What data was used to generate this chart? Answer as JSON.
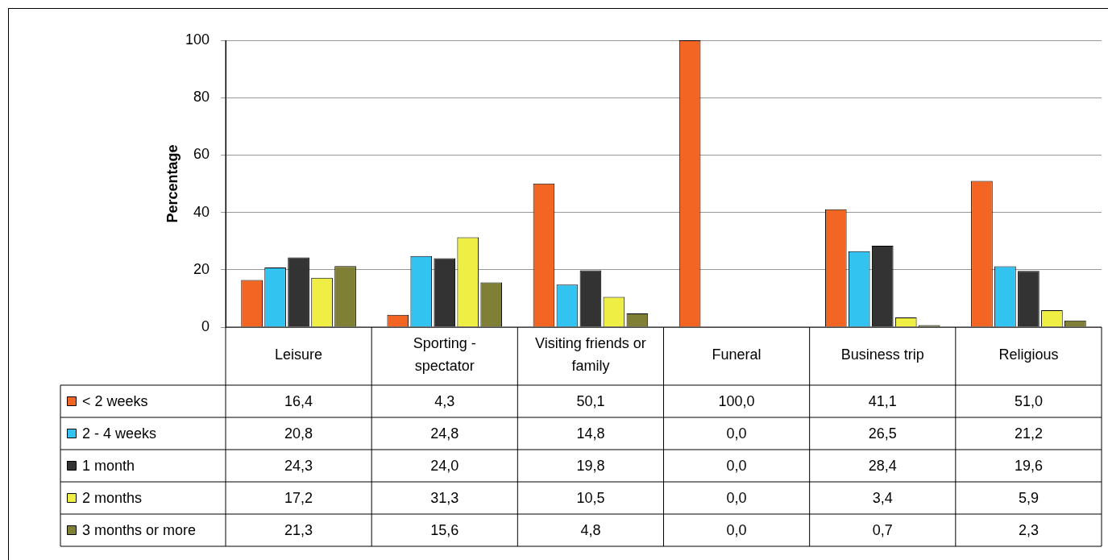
{
  "chart_data": {
    "type": "bar",
    "ylabel": "Percentage",
    "categories": [
      "Leisure",
      "Sporting - spectator",
      "Visiting friends or family",
      "Funeral",
      "Business trip",
      "Religious"
    ],
    "series": [
      {
        "name": "< 2 weeks",
        "color": "#f26522",
        "values": [
          16.4,
          4.3,
          50.1,
          100.0,
          41.1,
          51.0
        ],
        "value_labels": [
          "16,4",
          "4,3",
          "50,1",
          "100,0",
          "41,1",
          "51,0"
        ]
      },
      {
        "name": "2 - 4 weeks",
        "color": "#33c3f0",
        "values": [
          20.8,
          24.8,
          14.8,
          0.0,
          26.5,
          21.2
        ],
        "value_labels": [
          "20,8",
          "24,8",
          "14,8",
          "0,0",
          "26,5",
          "21,2"
        ]
      },
      {
        "name": "1 month",
        "color": "#333333",
        "values": [
          24.3,
          24.0,
          19.8,
          0.0,
          28.4,
          19.6
        ],
        "value_labels": [
          "24,3",
          "24,0",
          "19,8",
          "0,0",
          "28,4",
          "19,6"
        ]
      },
      {
        "name": "2 months",
        "color": "#eeee44",
        "values": [
          17.2,
          31.3,
          10.5,
          0.0,
          3.4,
          5.9
        ],
        "value_labels": [
          "17,2",
          "31,3",
          "10,5",
          "0,0",
          "3,4",
          "5,9"
        ]
      },
      {
        "name": "3 months or more",
        "color": "#7f7f35",
        "values": [
          21.3,
          15.6,
          4.8,
          0.0,
          0.7,
          2.3
        ],
        "value_labels": [
          "21,3",
          "15,6",
          "4,8",
          "0,0",
          "0,7",
          "2,3"
        ]
      }
    ],
    "ylim": [
      0,
      100
    ],
    "yticks": [
      0,
      20,
      40,
      60,
      80,
      100
    ],
    "grid": "y",
    "legend": "bottom left"
  }
}
